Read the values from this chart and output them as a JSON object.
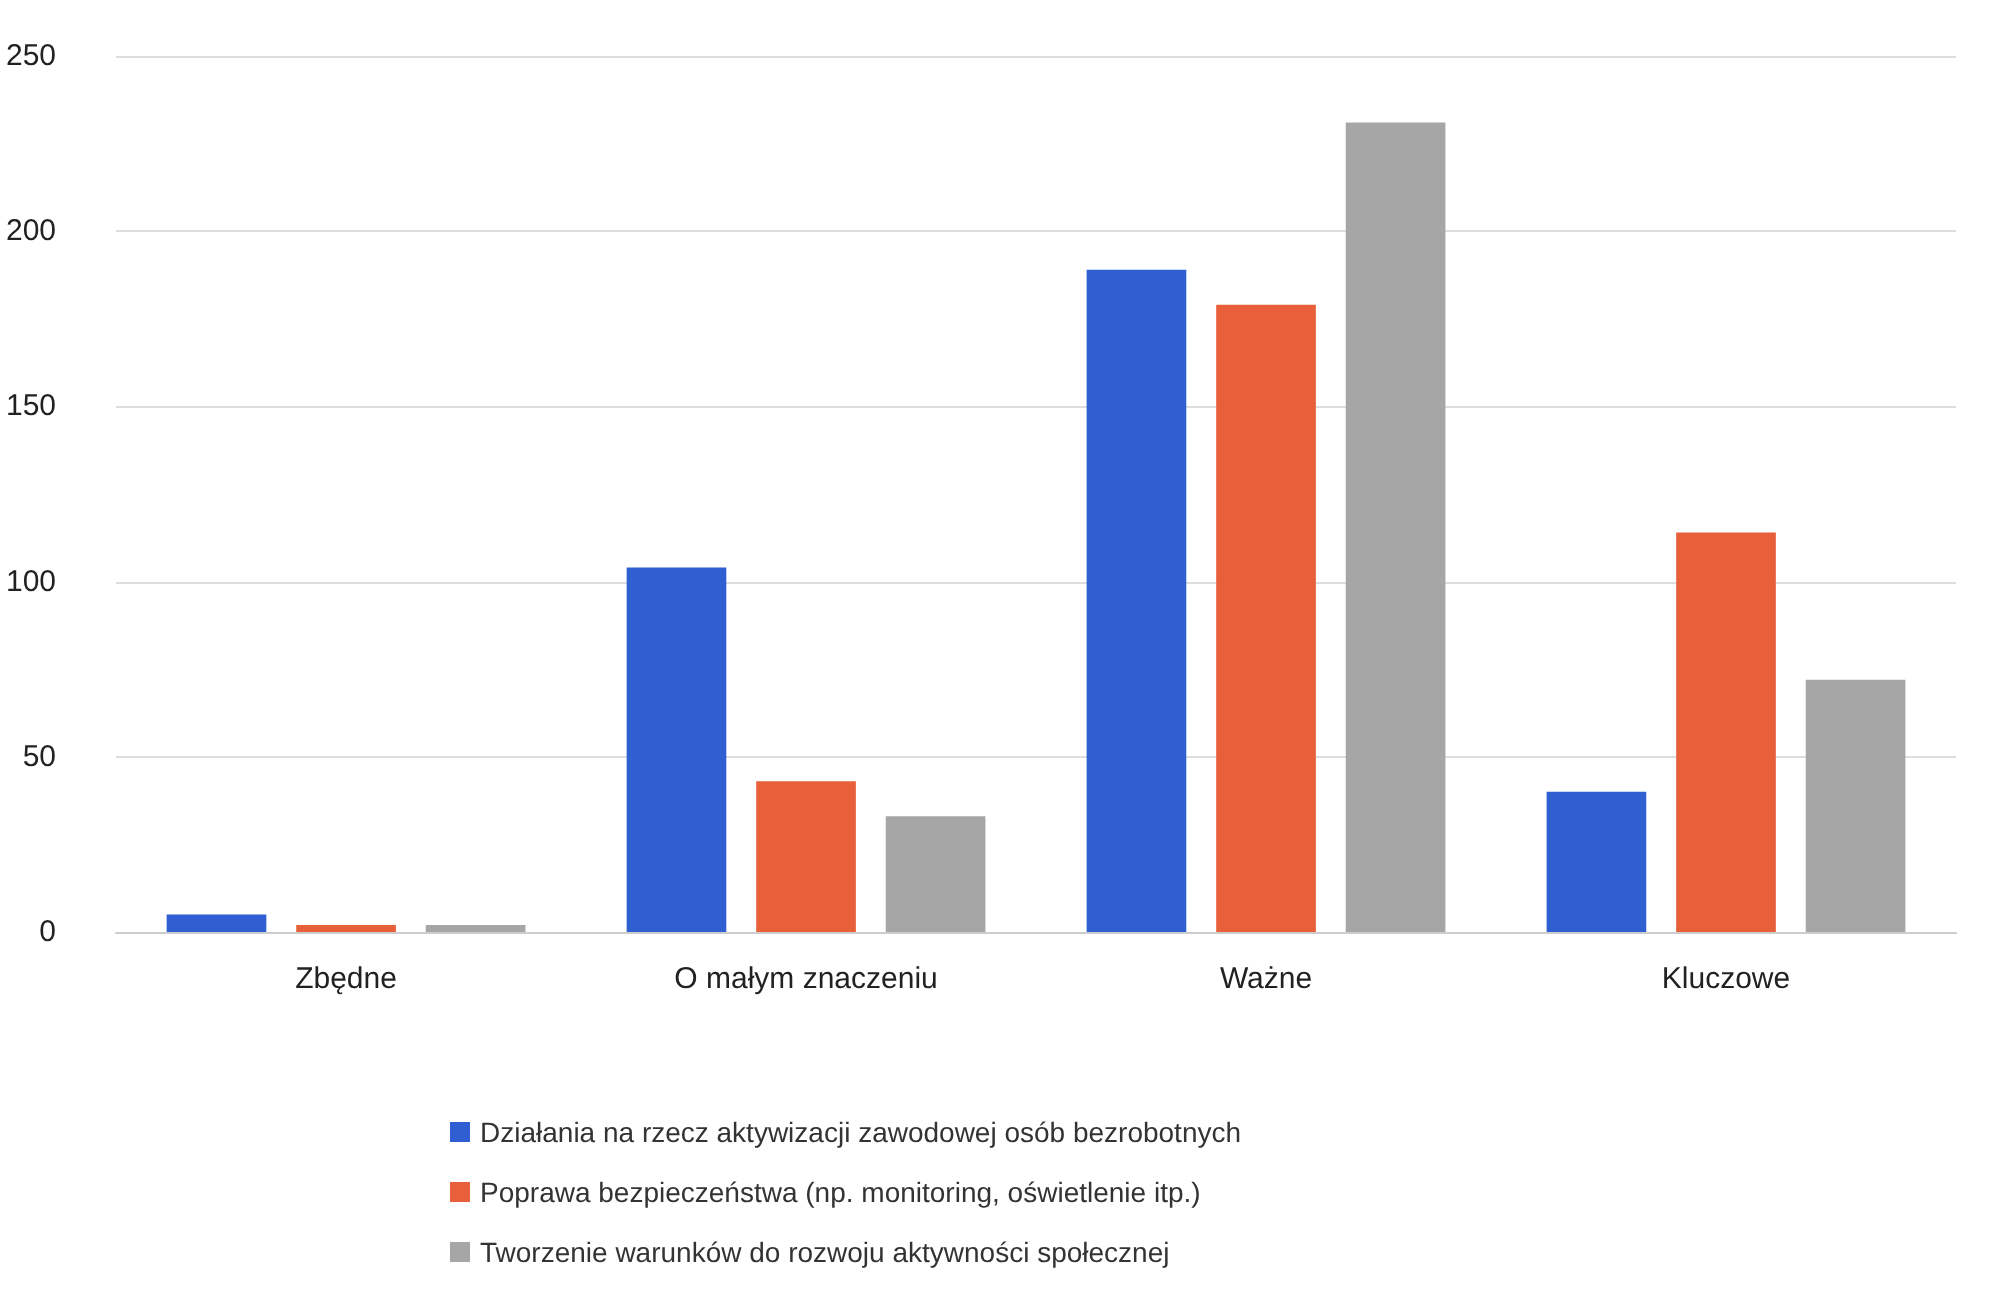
{
  "chart_data": {
    "type": "bar",
    "categories": [
      "Zbędne",
      "O małym znaczeniu",
      "Ważne",
      "Kluczowe"
    ],
    "series": [
      {
        "name": "Działania na rzecz aktywizacji zawodowej osób bezrobotnych",
        "color": "#2f5fd0",
        "values": [
          5,
          104,
          189,
          40
        ]
      },
      {
        "name": "Poprawa bezpieczeństwa (np. monitoring, oświetlenie itp.)",
        "color": "#e8603a",
        "values": [
          2,
          43,
          179,
          114
        ]
      },
      {
        "name": "Tworzenie warunków do rozwoju aktywności społecznej",
        "color": "#a6a6a6",
        "values": [
          2,
          33,
          231,
          72
        ]
      }
    ],
    "ylim": [
      0,
      250
    ],
    "yticks": [
      0,
      50,
      100,
      150,
      200,
      250
    ],
    "grid": "y",
    "legend": "bottom"
  }
}
